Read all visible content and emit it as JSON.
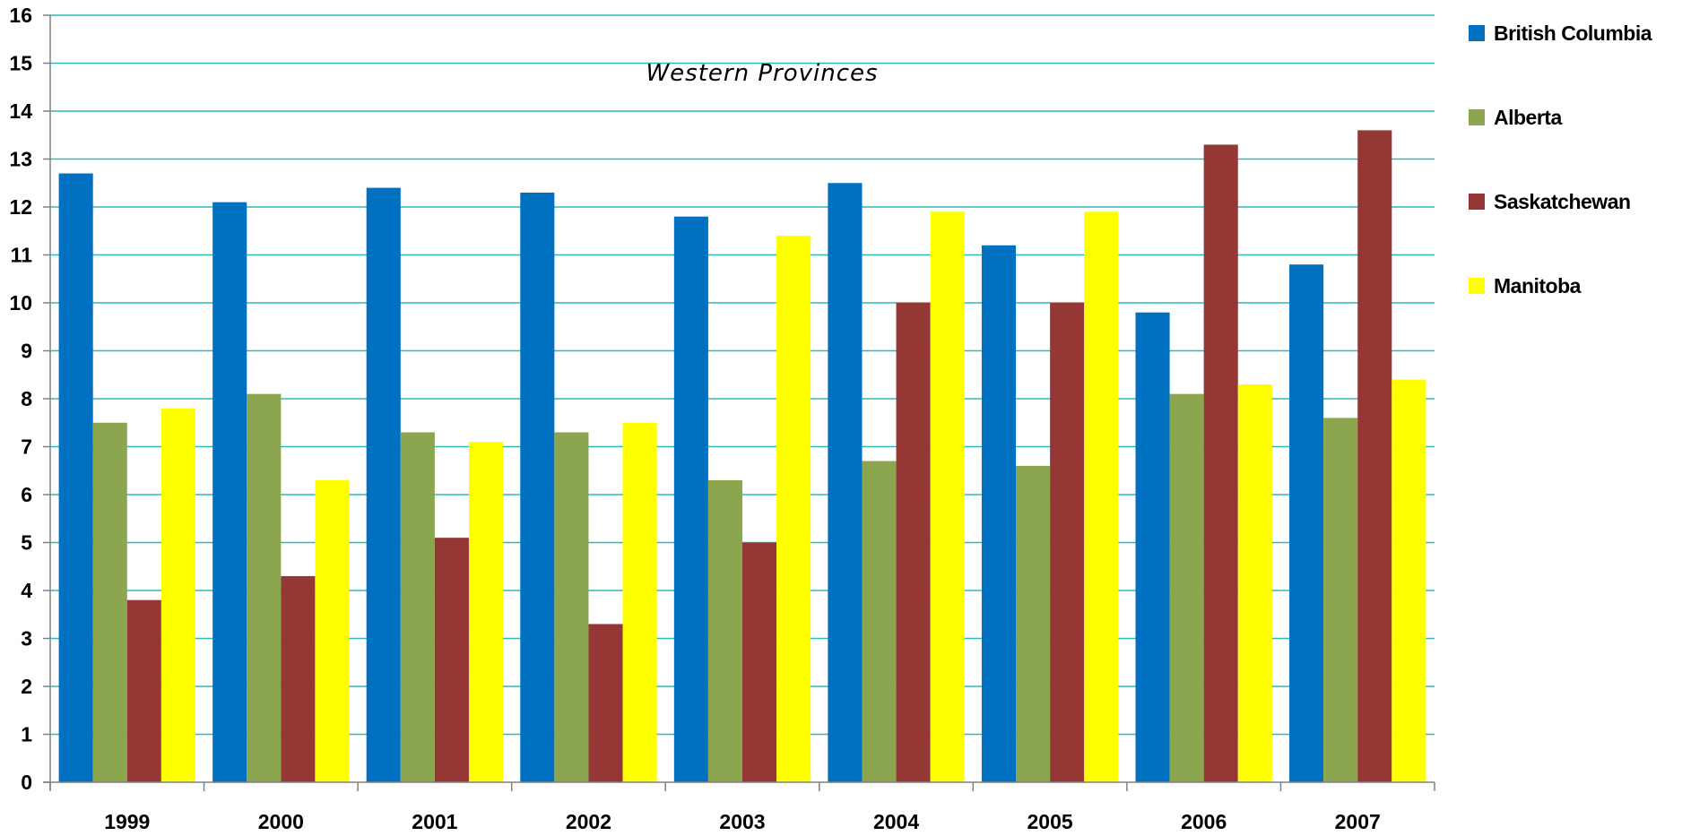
{
  "chart_data": {
    "type": "bar",
    "title": "Western Provinces",
    "xlabel": "",
    "ylabel": "",
    "ylim": [
      0,
      16
    ],
    "yticks": [
      0,
      1,
      2,
      3,
      4,
      5,
      6,
      7,
      8,
      9,
      10,
      11,
      12,
      13,
      14,
      15,
      16
    ],
    "grid": true,
    "legend_position": "right",
    "categories": [
      "1999",
      "2000",
      "2001",
      "2002",
      "2003",
      "2004",
      "2005",
      "2006",
      "2007"
    ],
    "series": [
      {
        "name": "British Columbia",
        "color": "#0070C0",
        "values": [
          12.7,
          12.1,
          12.4,
          12.3,
          11.8,
          12.5,
          11.2,
          9.8,
          10.8
        ]
      },
      {
        "name": "Alberta",
        "color": "#8BA64F",
        "values": [
          7.5,
          8.1,
          7.3,
          7.3,
          6.3,
          6.7,
          6.6,
          8.1,
          7.6
        ]
      },
      {
        "name": "Saskatchewan",
        "color": "#953735",
        "values": [
          3.8,
          4.3,
          5.1,
          3.3,
          5.0,
          10.0,
          10.0,
          13.3,
          13.6
        ]
      },
      {
        "name": "Manitoba",
        "color": "#FFFF00",
        "values": [
          7.8,
          6.3,
          7.1,
          7.5,
          11.4,
          11.9,
          11.9,
          8.3,
          8.4
        ]
      }
    ],
    "gridline_color": "#2EB8B8"
  }
}
